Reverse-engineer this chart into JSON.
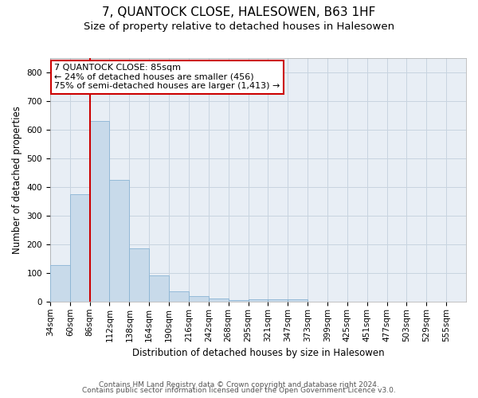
{
  "title": "7, QUANTOCK CLOSE, HALESOWEN, B63 1HF",
  "subtitle": "Size of property relative to detached houses in Halesowen",
  "xlabel": "Distribution of detached houses by size in Halesowen",
  "ylabel": "Number of detached properties",
  "bins": [
    "34sqm",
    "60sqm",
    "86sqm",
    "112sqm",
    "138sqm",
    "164sqm",
    "190sqm",
    "216sqm",
    "242sqm",
    "268sqm",
    "295sqm",
    "321sqm",
    "347sqm",
    "373sqm",
    "399sqm",
    "425sqm",
    "451sqm",
    "477sqm",
    "503sqm",
    "529sqm",
    "555sqm"
  ],
  "values": [
    128,
    375,
    630,
    425,
    185,
    90,
    36,
    18,
    10,
    6,
    8,
    9,
    7,
    0,
    0,
    0,
    0,
    0,
    0,
    0
  ],
  "bar_color": "#c8daea",
  "bar_edge_color": "#8ab4d4",
  "property_line_color": "#cc0000",
  "annotation_text": "7 QUANTOCK CLOSE: 85sqm\n← 24% of detached houses are smaller (456)\n75% of semi-detached houses are larger (1,413) →",
  "annotation_box_color": "#ffffff",
  "annotation_box_edge_color": "#cc0000",
  "ylim": [
    0,
    850
  ],
  "yticks": [
    0,
    100,
    200,
    300,
    400,
    500,
    600,
    700,
    800
  ],
  "footnote1": "Contains HM Land Registry data © Crown copyright and database right 2024.",
  "footnote2": "Contains public sector information licensed under the Open Government Licence v3.0.",
  "title_fontsize": 11,
  "subtitle_fontsize": 9.5,
  "axis_label_fontsize": 8.5,
  "tick_fontsize": 7.5,
  "annotation_fontsize": 8,
  "footnote_fontsize": 6.5,
  "background_color": "#ffffff",
  "plot_bg_color": "#e8eef5",
  "grid_color": "#c8d4e0"
}
